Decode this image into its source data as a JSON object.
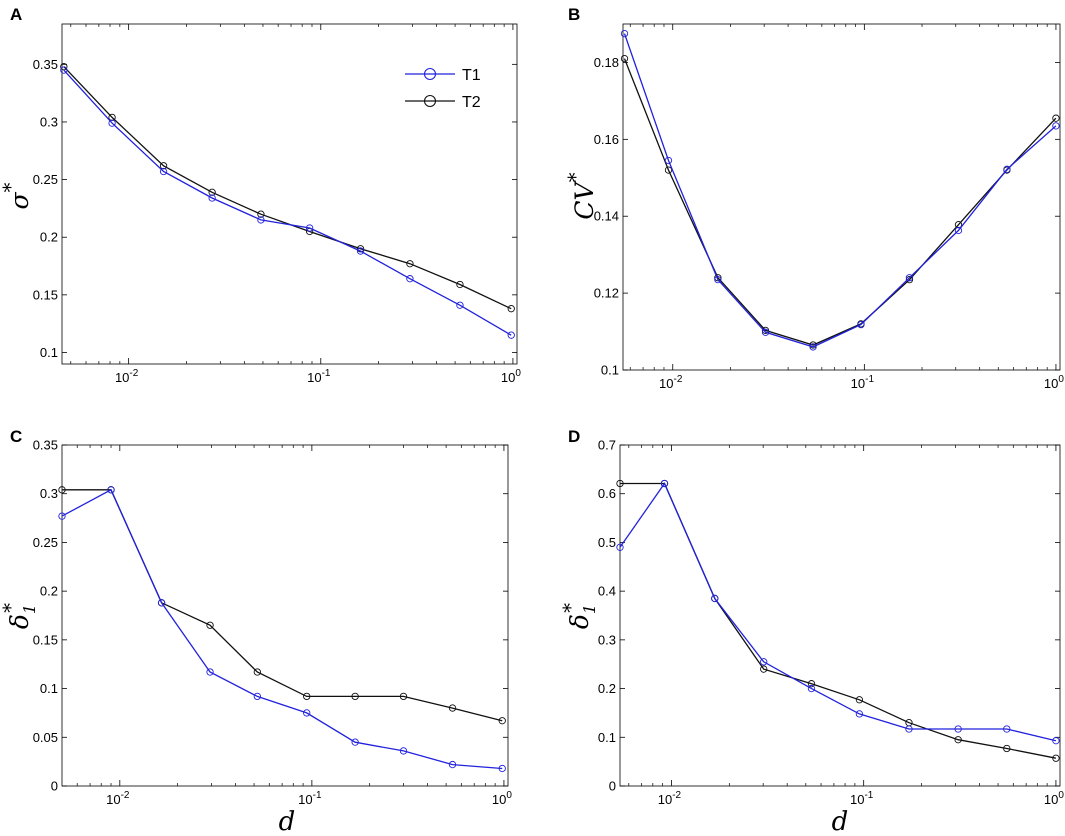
{
  "chart_data": [
    {
      "panel": "A",
      "type": "line",
      "xscale": "log",
      "xlim": [
        0.0045,
        1.05
      ],
      "ylim": [
        0.09,
        0.385
      ],
      "yticks": [
        0.1,
        0.15,
        0.2,
        0.25,
        0.3,
        0.35
      ],
      "ytick_labels": [
        "0.1",
        "0.15",
        "0.2",
        "0.25",
        "0.3",
        "0.35"
      ],
      "xticks": [
        0.01,
        0.1,
        1
      ],
      "xtick_labels": [
        {
          "base": "10",
          "exp": "-2"
        },
        {
          "base": "10",
          "exp": "-1"
        },
        {
          "base": "10",
          "exp": "0"
        }
      ],
      "ylabel": {
        "main": "σ",
        "sup": "*",
        "sub": ""
      },
      "xlabel": "",
      "legend": {
        "position": "top-right",
        "entries": [
          "T1",
          "T2"
        ]
      },
      "x": [
        0.0046,
        0.0082,
        0.0152,
        0.0272,
        0.0488,
        0.0875,
        0.161,
        0.291,
        0.53,
        0.98
      ],
      "series": [
        {
          "name": "T1",
          "color": "#2222dd",
          "values": [
            0.345,
            0.299,
            0.257,
            0.234,
            0.215,
            0.208,
            0.188,
            0.164,
            0.141,
            0.115
          ]
        },
        {
          "name": "T2",
          "color": "#111111",
          "values": [
            0.348,
            0.304,
            0.262,
            0.239,
            0.22,
            0.205,
            0.19,
            0.177,
            0.159,
            0.138
          ]
        }
      ]
    },
    {
      "panel": "B",
      "type": "line",
      "xscale": "log",
      "xlim": [
        0.0055,
        1.05
      ],
      "ylim": [
        0.1,
        0.19
      ],
      "yticks": [
        0.1,
        0.12,
        0.14,
        0.16,
        0.18
      ],
      "ytick_labels": [
        "0.1",
        "0.12",
        "0.14",
        "0.16",
        "0.18"
      ],
      "xticks": [
        0.01,
        0.1,
        1
      ],
      "xtick_labels": [
        {
          "base": "10",
          "exp": "-2"
        },
        {
          "base": "10",
          "exp": "-1"
        },
        {
          "base": "10",
          "exp": "0"
        }
      ],
      "ylabel": {
        "main": "CV",
        "sup": "*",
        "sub": ""
      },
      "xlabel": "",
      "x": [
        0.0056,
        0.0095,
        0.0172,
        0.0305,
        0.054,
        0.096,
        0.172,
        0.31,
        0.555,
        1.0
      ],
      "series": [
        {
          "name": "T1",
          "color": "#2222dd",
          "values": [
            0.1875,
            0.1545,
            0.1235,
            0.1098,
            0.106,
            0.1118,
            0.124,
            0.1363,
            0.1522,
            0.1635
          ]
        },
        {
          "name": "T2",
          "color": "#111111",
          "values": [
            0.181,
            0.152,
            0.124,
            0.1103,
            0.1065,
            0.112,
            0.1235,
            0.1378,
            0.152,
            0.1655
          ]
        }
      ]
    },
    {
      "panel": "C",
      "type": "line",
      "xscale": "log",
      "xlim": [
        0.005,
        1.05
      ],
      "ylim": [
        0,
        0.35
      ],
      "yticks": [
        0,
        0.05,
        0.1,
        0.15,
        0.2,
        0.25,
        0.3,
        0.35
      ],
      "ytick_labels": [
        "0",
        "0.05",
        "0.1",
        "0.15",
        "0.2",
        "0.25",
        "0.3",
        "0.35"
      ],
      "xticks": [
        0.01,
        0.1,
        1
      ],
      "xtick_labels": [
        {
          "base": "10",
          "exp": "-2"
        },
        {
          "base": "10",
          "exp": "-1"
        },
        {
          "base": "10",
          "exp": "0"
        }
      ],
      "ylabel": {
        "main": "δ",
        "sup": "*",
        "sub": "1"
      },
      "xlabel": "d",
      "x": [
        0.005,
        0.009,
        0.0165,
        0.0295,
        0.052,
        0.094,
        0.168,
        0.3,
        0.54,
        0.98
      ],
      "series": [
        {
          "name": "T1",
          "color": "#2222dd",
          "values": [
            0.277,
            0.304,
            0.188,
            0.117,
            0.092,
            0.075,
            0.045,
            0.036,
            0.022,
            0.018
          ]
        },
        {
          "name": "T2",
          "color": "#111111",
          "values": [
            0.304,
            0.304,
            0.188,
            0.165,
            0.117,
            0.092,
            0.092,
            0.092,
            0.08,
            0.067
          ]
        }
      ]
    },
    {
      "panel": "D",
      "type": "line",
      "xscale": "log",
      "xlim": [
        0.0054,
        1.05
      ],
      "ylim": [
        0,
        0.7
      ],
      "yticks": [
        0,
        0.1,
        0.2,
        0.3,
        0.4,
        0.5,
        0.6,
        0.7
      ],
      "ytick_labels": [
        "0",
        "0.1",
        "0.2",
        "0.3",
        "0.4",
        "0.5",
        "0.6",
        "0.7"
      ],
      "xticks": [
        0.01,
        0.1,
        1
      ],
      "xtick_labels": [
        {
          "base": "10",
          "exp": "-2"
        },
        {
          "base": "10",
          "exp": "-1"
        },
        {
          "base": "10",
          "exp": "0"
        }
      ],
      "ylabel": {
        "main": "δ",
        "sup": "*",
        "sub": "1"
      },
      "xlabel": "d",
      "x": [
        0.0054,
        0.0092,
        0.0168,
        0.0302,
        0.0535,
        0.095,
        0.172,
        0.31,
        0.555,
        1.0
      ],
      "series": [
        {
          "name": "T1",
          "color": "#2222dd",
          "values": [
            0.49,
            0.621,
            0.385,
            0.255,
            0.2,
            0.148,
            0.117,
            0.117,
            0.117,
            0.093
          ]
        },
        {
          "name": "T2",
          "color": "#111111",
          "values": [
            0.621,
            0.621,
            0.385,
            0.24,
            0.21,
            0.177,
            0.13,
            0.095,
            0.077,
            0.057
          ]
        }
      ]
    }
  ]
}
